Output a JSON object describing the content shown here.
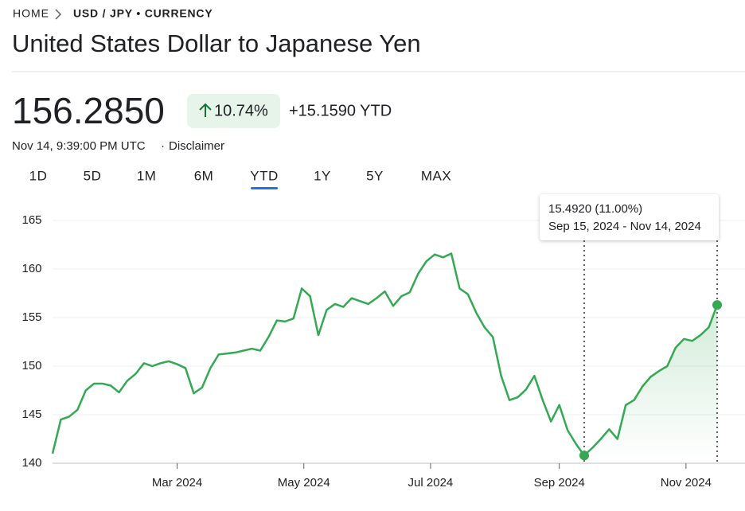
{
  "breadcrumb": [
    "HOME",
    "USD / JPY • CURRENCY"
  ],
  "title": "United States Dollar to Japanese Yen",
  "price": "156.2850",
  "change_percent": "10.74%",
  "change_value": "+15.1590 YTD",
  "timestamp": "Nov 14, 9:39:00 PM UTC",
  "disclaimer": "Disclaimer",
  "ranges": [
    "1D",
    "5D",
    "1M",
    "6M",
    "YTD",
    "1Y",
    "5Y",
    "MAX"
  ],
  "selected_range": "YTD",
  "tooltip": {
    "value": "15.4920 (11.00%)",
    "range": "Sep 15, 2024 - Nov 14, 2024"
  },
  "chart_data": {
    "type": "line",
    "color": "#34a853",
    "values": [
      141.0,
      144.5,
      144.8,
      145.5,
      147.5,
      148.2,
      148.2,
      148.0,
      147.3,
      148.5,
      149.2,
      150.3,
      150.0,
      150.3,
      150.5,
      150.2,
      149.8,
      147.2,
      147.8,
      149.8,
      151.2,
      151.3,
      151.4,
      151.6,
      151.8,
      151.6,
      153.0,
      154.7,
      154.6,
      154.9,
      158.0,
      157.2,
      153.2,
      155.8,
      156.4,
      156.1,
      157.0,
      156.7,
      156.4,
      157.0,
      157.7,
      156.2,
      157.2,
      157.6,
      159.5,
      160.8,
      161.5,
      161.2,
      161.6,
      158.0,
      157.4,
      155.5,
      154.0,
      153.0,
      149.0,
      146.5,
      146.8,
      147.6,
      149.0,
      146.5,
      144.3,
      146.0,
      143.4,
      142.0,
      140.8,
      141.6,
      142.5,
      143.5,
      142.5,
      146.0,
      146.5,
      147.9,
      148.9,
      149.5,
      150.0,
      151.9,
      152.8,
      152.6,
      153.2,
      154.0,
      156.3
    ],
    "xlim": [
      0,
      80
    ],
    "xticks": [
      {
        "value": 15,
        "label": "Mar 2024"
      },
      {
        "value": 30.25,
        "label": "May 2024"
      },
      {
        "value": 45.5,
        "label": "Jul 2024"
      },
      {
        "value": 61,
        "label": "Sep 2024"
      },
      {
        "value": 76.25,
        "label": "Nov 2024"
      }
    ],
    "ylim": [
      140,
      165
    ],
    "yticks": [
      140,
      145,
      150,
      155,
      160,
      165
    ],
    "grid": true
  }
}
